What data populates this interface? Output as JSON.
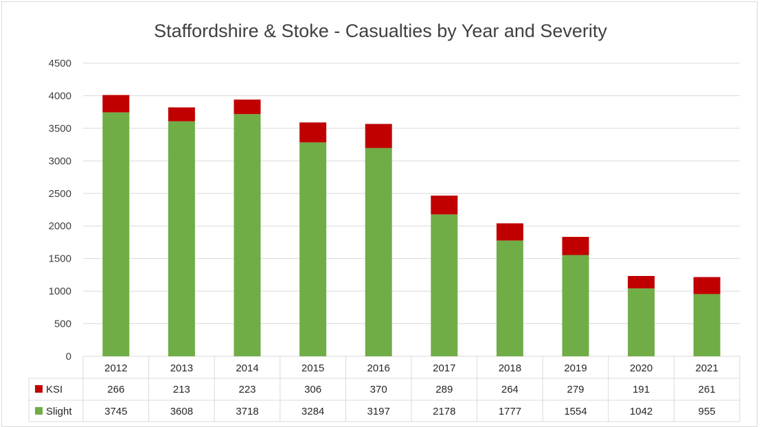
{
  "chart_data": {
    "type": "bar",
    "stacked": true,
    "title": "Staffordshire & Stoke - Casualties by Year and Severity",
    "categories": [
      "2012",
      "2013",
      "2014",
      "2015",
      "2016",
      "2017",
      "2018",
      "2019",
      "2020",
      "2021"
    ],
    "series": [
      {
        "name": "Slight",
        "color": "#70ad47",
        "values": [
          3745,
          3608,
          3718,
          3284,
          3197,
          2178,
          1777,
          1554,
          1042,
          955
        ]
      },
      {
        "name": "KSI",
        "color": "#c00000",
        "values": [
          266,
          213,
          223,
          306,
          370,
          289,
          264,
          279,
          191,
          261
        ]
      }
    ],
    "ylim": [
      0,
      4500
    ],
    "yticks": [
      0,
      500,
      1000,
      1500,
      2000,
      2500,
      3000,
      3500,
      4000,
      4500
    ],
    "grid": true,
    "legend": "data table below chart"
  }
}
